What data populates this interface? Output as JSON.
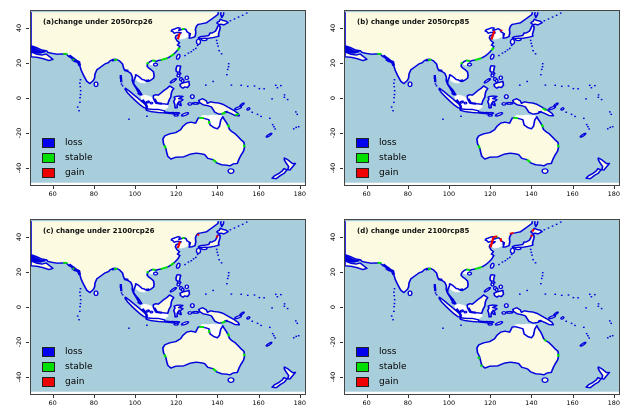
{
  "panels": [
    {
      "id": "a",
      "title": "(a)change under 2050rcp26",
      "marks": {
        "stable": [
          [
            66.8,
            25.3,
            64.8,
            25.4
          ],
          [
            69.3,
            22.2,
            70.2,
            21.9
          ],
          [
            89.6,
            21.8,
            91.2,
            22.1
          ],
          [
            106.2,
            20.6,
            105.9,
            19.4
          ],
          [
            108.2,
            21.6,
            110.0,
            21.2
          ],
          [
            112.5,
            21.8,
            115.8,
            22.9
          ],
          [
            117.2,
            23.9,
            119.0,
            25.4
          ],
          [
            120.6,
            27.4,
            121.7,
            28.9
          ],
          [
            124.1,
            39.6,
            122.8,
            39.7
          ],
          [
            131.3,
            -11.4,
            133.6,
            -11.6
          ],
          [
            136.2,
            -13.2,
            136.0,
            -14.8
          ],
          [
            145.3,
            -15.2,
            145.9,
            -16.8
          ],
          [
            153.2,
            -26.8,
            153.4,
            -28.3
          ],
          [
            138.0,
            -35.4,
            139.6,
            -36.9
          ],
          [
            114.3,
            -27.2,
            114.9,
            -29.0
          ],
          [
            142.2,
            -9.2,
            144.2,
            -8.2
          ],
          [
            148.9,
            -9.9,
            150.6,
            -9.1
          ]
        ],
        "gain": [
          [
            120.8,
            33.8,
            121.8,
            37.2
          ]
        ]
      }
    },
    {
      "id": "b",
      "title": "(b) change under 2050rcp85",
      "marks": {
        "stable": [
          [
            66.8,
            25.3,
            64.8,
            25.4
          ],
          [
            89.6,
            21.8,
            91.2,
            22.1
          ],
          [
            106.2,
            20.6,
            105.9,
            19.4
          ],
          [
            108.2,
            21.6,
            110.0,
            21.2
          ],
          [
            112.5,
            21.8,
            115.8,
            22.9
          ],
          [
            120.6,
            27.4,
            121.7,
            28.9
          ],
          [
            131.3,
            -11.4,
            133.6,
            -11.6
          ],
          [
            145.3,
            -15.2,
            145.9,
            -16.8
          ],
          [
            153.2,
            -26.8,
            153.4,
            -28.3
          ],
          [
            138.0,
            -35.4,
            139.6,
            -36.9
          ],
          [
            114.3,
            -27.2,
            114.9,
            -29.0
          ],
          [
            145.6,
            -5.9,
            147.4,
            -7.1
          ]
        ],
        "gain": [
          [
            120.6,
            33.6,
            122.1,
            38.6
          ],
          [
            125.6,
            38.3,
            125.3,
            39.2
          ]
        ]
      }
    },
    {
      "id": "c",
      "title": "(c) change under 2100rcp26",
      "marks": {
        "stable": [
          [
            66.8,
            25.3,
            64.8,
            25.4
          ],
          [
            69.3,
            22.2,
            70.2,
            21.9
          ],
          [
            89.6,
            21.8,
            91.2,
            22.1
          ],
          [
            106.2,
            20.6,
            105.9,
            19.4
          ],
          [
            108.2,
            21.6,
            110.0,
            21.2
          ],
          [
            112.5,
            21.8,
            115.8,
            22.9
          ],
          [
            117.2,
            23.9,
            119.0,
            25.4
          ],
          [
            124.1,
            39.6,
            122.8,
            39.7
          ],
          [
            131.3,
            -11.4,
            133.6,
            -11.6
          ],
          [
            136.2,
            -13.2,
            136.0,
            -14.8
          ],
          [
            145.3,
            -15.2,
            145.9,
            -16.8
          ],
          [
            153.2,
            -26.8,
            153.4,
            -28.3
          ],
          [
            138.0,
            -35.4,
            139.6,
            -36.9
          ],
          [
            114.3,
            -27.2,
            114.9,
            -29.0
          ],
          [
            142.2,
            -9.2,
            144.2,
            -8.2
          ]
        ],
        "gain": [
          [
            120.8,
            33.9,
            121.9,
            37.6
          ],
          [
            139.8,
            39.9,
            140.2,
            41.1
          ],
          [
            130.4,
            41.3,
            131.2,
            41.8
          ]
        ]
      }
    },
    {
      "id": "d",
      "title": "(d) change under 2100rcp85",
      "marks": {
        "stable": [
          [
            66.8,
            25.3,
            65.0,
            25.4
          ],
          [
            89.6,
            21.8,
            91.0,
            22.1
          ],
          [
            108.3,
            21.6,
            110.2,
            21.2
          ],
          [
            112.5,
            21.8,
            116.0,
            23.0
          ],
          [
            122.7,
            40.3,
            123.7,
            40.0
          ],
          [
            114.1,
            -28.6,
            114.8,
            -29.8
          ],
          [
            115.5,
            -33.2,
            115.9,
            -34.3
          ],
          [
            153.2,
            -27.0,
            153.4,
            -28.6
          ],
          [
            146.5,
            -18.7,
            147.4,
            -19.7
          ]
        ],
        "gain": [
          [
            120.2,
            34.3,
            121.6,
            40.2
          ],
          [
            121.6,
            40.2,
            123.5,
            40.6
          ],
          [
            125.4,
            37.6,
            125.1,
            39.5
          ],
          [
            129.6,
            42.1,
            131.4,
            42.6
          ],
          [
            140.0,
            40.3,
            140.4,
            41.5
          ],
          [
            140.6,
            43.4,
            141.3,
            44.7
          ]
        ]
      }
    }
  ],
  "legend": {
    "items": [
      {
        "label": "loss",
        "color": "#0000ee"
      },
      {
        "label": "stable",
        "color": "#00e000"
      },
      {
        "label": "gain",
        "color": "#f00000"
      }
    ]
  },
  "axes": {
    "x_ticks": [
      60,
      80,
      100,
      120,
      140,
      160,
      180
    ],
    "y_ticks": [
      40,
      20,
      0,
      -20,
      -40
    ],
    "x_range": [
      49,
      183
    ],
    "y_range": [
      -50,
      50
    ]
  },
  "colors": {
    "ocean": "#a9cedb",
    "land": "#fcfbe2",
    "shelf": "#ffffff",
    "loss": "#0000dd",
    "panel_bg": "#ffffff",
    "frame": "#444444"
  }
}
